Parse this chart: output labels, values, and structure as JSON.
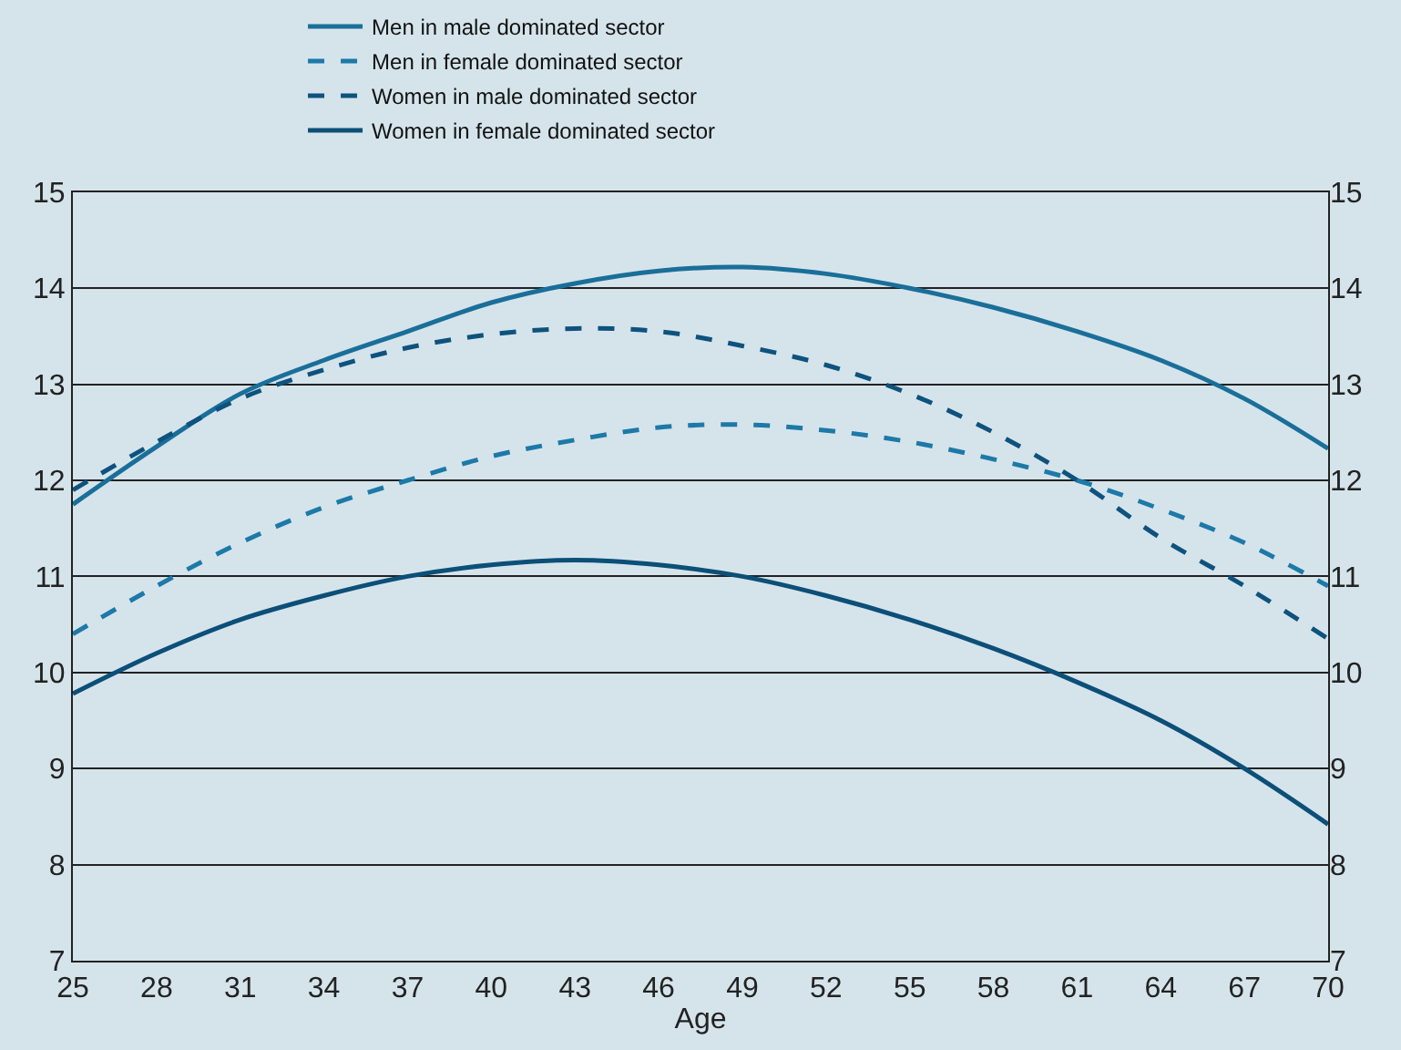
{
  "chart_data": {
    "type": "line",
    "xlabel": "Age",
    "x": [
      25,
      28,
      31,
      34,
      37,
      40,
      43,
      46,
      49,
      52,
      55,
      58,
      61,
      64,
      67,
      70
    ],
    "series": [
      {
        "name": "Men in male dominated sector",
        "color": "#1a6f99",
        "line_style": "solid",
        "values": [
          11.75,
          12.35,
          12.9,
          13.25,
          13.55,
          13.85,
          14.05,
          14.18,
          14.22,
          14.15,
          14.0,
          13.8,
          13.55,
          13.25,
          12.85,
          12.33
        ]
      },
      {
        "name": "Men in female dominated sector",
        "color": "#1d79a8",
        "line_style": "dashed",
        "values": [
          10.4,
          10.9,
          11.35,
          11.72,
          12.0,
          12.25,
          12.42,
          12.55,
          12.58,
          12.52,
          12.4,
          12.22,
          12.0,
          11.7,
          11.35,
          10.9
        ]
      },
      {
        "name": "Women in male dominated sector",
        "color": "#0e527e",
        "line_style": "dashed",
        "values": [
          11.9,
          12.4,
          12.85,
          13.15,
          13.38,
          13.52,
          13.58,
          13.55,
          13.4,
          13.2,
          12.9,
          12.5,
          12.0,
          11.4,
          10.9,
          10.35
        ]
      },
      {
        "name": "Women in female dominated sector",
        "color": "#0c4f78",
        "line_style": "solid",
        "values": [
          9.78,
          10.2,
          10.55,
          10.8,
          11.0,
          11.12,
          11.17,
          11.12,
          11.0,
          10.8,
          10.55,
          10.25,
          9.9,
          9.5,
          9.0,
          8.42
        ]
      }
    ],
    "xlim": [
      25,
      70
    ],
    "xticks": [
      25,
      28,
      31,
      34,
      37,
      40,
      43,
      46,
      49,
      52,
      55,
      58,
      61,
      64,
      67,
      70
    ],
    "ylim": [
      7,
      15
    ],
    "yticks": [
      7,
      8,
      9,
      10,
      11,
      12,
      13,
      14,
      15
    ],
    "y2lim": [
      7,
      15
    ],
    "y2ticks": [
      7,
      8,
      9,
      10,
      11,
      12,
      13,
      14,
      15
    ],
    "grid": "y",
    "legend": "top",
    "marker": "none"
  }
}
